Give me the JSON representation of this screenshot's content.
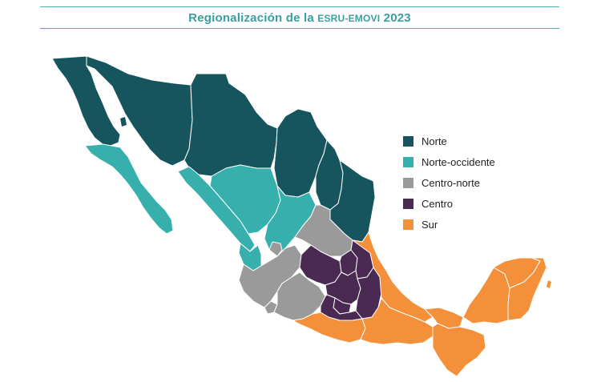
{
  "title": {
    "prefix": "Regionalización de la ",
    "survey": "ESRU-EMOVI",
    "year": " 2023"
  },
  "legend": [
    {
      "key": "norte",
      "label": "Norte",
      "color": "#17555e"
    },
    {
      "key": "norte_occidente",
      "label": "Norte-occidente",
      "color": "#37b0ad"
    },
    {
      "key": "centro_norte",
      "label": "Centro-norte",
      "color": "#9a9a9a"
    },
    {
      "key": "centro",
      "label": "Centro",
      "color": "#4a2a52"
    },
    {
      "key": "sur",
      "label": "Sur",
      "color": "#f5903a"
    }
  ]
}
